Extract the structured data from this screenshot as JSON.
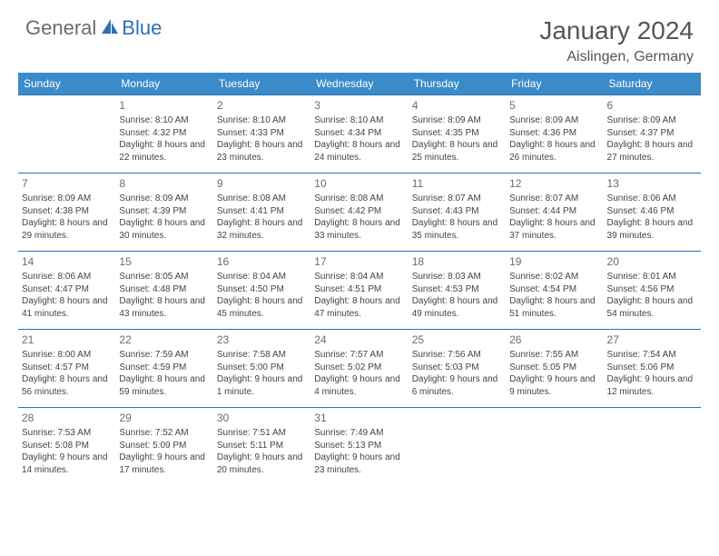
{
  "logo": {
    "text1": "General",
    "text2": "Blue"
  },
  "title": "January 2024",
  "location": "Aislingen, Germany",
  "colors": {
    "header_bg": "#3b8bc8",
    "header_text": "#ffffff",
    "border": "#2a72b5",
    "logo_gray": "#6b6b6b",
    "logo_blue": "#2a72b5",
    "text": "#444444"
  },
  "day_headers": [
    "Sunday",
    "Monday",
    "Tuesday",
    "Wednesday",
    "Thursday",
    "Friday",
    "Saturday"
  ],
  "weeks": [
    [
      {
        "n": "",
        "sr": "",
        "ss": "",
        "dl": ""
      },
      {
        "n": "1",
        "sr": "Sunrise: 8:10 AM",
        "ss": "Sunset: 4:32 PM",
        "dl": "Daylight: 8 hours and 22 minutes."
      },
      {
        "n": "2",
        "sr": "Sunrise: 8:10 AM",
        "ss": "Sunset: 4:33 PM",
        "dl": "Daylight: 8 hours and 23 minutes."
      },
      {
        "n": "3",
        "sr": "Sunrise: 8:10 AM",
        "ss": "Sunset: 4:34 PM",
        "dl": "Daylight: 8 hours and 24 minutes."
      },
      {
        "n": "4",
        "sr": "Sunrise: 8:09 AM",
        "ss": "Sunset: 4:35 PM",
        "dl": "Daylight: 8 hours and 25 minutes."
      },
      {
        "n": "5",
        "sr": "Sunrise: 8:09 AM",
        "ss": "Sunset: 4:36 PM",
        "dl": "Daylight: 8 hours and 26 minutes."
      },
      {
        "n": "6",
        "sr": "Sunrise: 8:09 AM",
        "ss": "Sunset: 4:37 PM",
        "dl": "Daylight: 8 hours and 27 minutes."
      }
    ],
    [
      {
        "n": "7",
        "sr": "Sunrise: 8:09 AM",
        "ss": "Sunset: 4:38 PM",
        "dl": "Daylight: 8 hours and 29 minutes."
      },
      {
        "n": "8",
        "sr": "Sunrise: 8:09 AM",
        "ss": "Sunset: 4:39 PM",
        "dl": "Daylight: 8 hours and 30 minutes."
      },
      {
        "n": "9",
        "sr": "Sunrise: 8:08 AM",
        "ss": "Sunset: 4:41 PM",
        "dl": "Daylight: 8 hours and 32 minutes."
      },
      {
        "n": "10",
        "sr": "Sunrise: 8:08 AM",
        "ss": "Sunset: 4:42 PM",
        "dl": "Daylight: 8 hours and 33 minutes."
      },
      {
        "n": "11",
        "sr": "Sunrise: 8:07 AM",
        "ss": "Sunset: 4:43 PM",
        "dl": "Daylight: 8 hours and 35 minutes."
      },
      {
        "n": "12",
        "sr": "Sunrise: 8:07 AM",
        "ss": "Sunset: 4:44 PM",
        "dl": "Daylight: 8 hours and 37 minutes."
      },
      {
        "n": "13",
        "sr": "Sunrise: 8:06 AM",
        "ss": "Sunset: 4:46 PM",
        "dl": "Daylight: 8 hours and 39 minutes."
      }
    ],
    [
      {
        "n": "14",
        "sr": "Sunrise: 8:06 AM",
        "ss": "Sunset: 4:47 PM",
        "dl": "Daylight: 8 hours and 41 minutes."
      },
      {
        "n": "15",
        "sr": "Sunrise: 8:05 AM",
        "ss": "Sunset: 4:48 PM",
        "dl": "Daylight: 8 hours and 43 minutes."
      },
      {
        "n": "16",
        "sr": "Sunrise: 8:04 AM",
        "ss": "Sunset: 4:50 PM",
        "dl": "Daylight: 8 hours and 45 minutes."
      },
      {
        "n": "17",
        "sr": "Sunrise: 8:04 AM",
        "ss": "Sunset: 4:51 PM",
        "dl": "Daylight: 8 hours and 47 minutes."
      },
      {
        "n": "18",
        "sr": "Sunrise: 8:03 AM",
        "ss": "Sunset: 4:53 PM",
        "dl": "Daylight: 8 hours and 49 minutes."
      },
      {
        "n": "19",
        "sr": "Sunrise: 8:02 AM",
        "ss": "Sunset: 4:54 PM",
        "dl": "Daylight: 8 hours and 51 minutes."
      },
      {
        "n": "20",
        "sr": "Sunrise: 8:01 AM",
        "ss": "Sunset: 4:56 PM",
        "dl": "Daylight: 8 hours and 54 minutes."
      }
    ],
    [
      {
        "n": "21",
        "sr": "Sunrise: 8:00 AM",
        "ss": "Sunset: 4:57 PM",
        "dl": "Daylight: 8 hours and 56 minutes."
      },
      {
        "n": "22",
        "sr": "Sunrise: 7:59 AM",
        "ss": "Sunset: 4:59 PM",
        "dl": "Daylight: 8 hours and 59 minutes."
      },
      {
        "n": "23",
        "sr": "Sunrise: 7:58 AM",
        "ss": "Sunset: 5:00 PM",
        "dl": "Daylight: 9 hours and 1 minute."
      },
      {
        "n": "24",
        "sr": "Sunrise: 7:57 AM",
        "ss": "Sunset: 5:02 PM",
        "dl": "Daylight: 9 hours and 4 minutes."
      },
      {
        "n": "25",
        "sr": "Sunrise: 7:56 AM",
        "ss": "Sunset: 5:03 PM",
        "dl": "Daylight: 9 hours and 6 minutes."
      },
      {
        "n": "26",
        "sr": "Sunrise: 7:55 AM",
        "ss": "Sunset: 5:05 PM",
        "dl": "Daylight: 9 hours and 9 minutes."
      },
      {
        "n": "27",
        "sr": "Sunrise: 7:54 AM",
        "ss": "Sunset: 5:06 PM",
        "dl": "Daylight: 9 hours and 12 minutes."
      }
    ],
    [
      {
        "n": "28",
        "sr": "Sunrise: 7:53 AM",
        "ss": "Sunset: 5:08 PM",
        "dl": "Daylight: 9 hours and 14 minutes."
      },
      {
        "n": "29",
        "sr": "Sunrise: 7:52 AM",
        "ss": "Sunset: 5:09 PM",
        "dl": "Daylight: 9 hours and 17 minutes."
      },
      {
        "n": "30",
        "sr": "Sunrise: 7:51 AM",
        "ss": "Sunset: 5:11 PM",
        "dl": "Daylight: 9 hours and 20 minutes."
      },
      {
        "n": "31",
        "sr": "Sunrise: 7:49 AM",
        "ss": "Sunset: 5:13 PM",
        "dl": "Daylight: 9 hours and 23 minutes."
      },
      {
        "n": "",
        "sr": "",
        "ss": "",
        "dl": ""
      },
      {
        "n": "",
        "sr": "",
        "ss": "",
        "dl": ""
      },
      {
        "n": "",
        "sr": "",
        "ss": "",
        "dl": ""
      }
    ]
  ]
}
